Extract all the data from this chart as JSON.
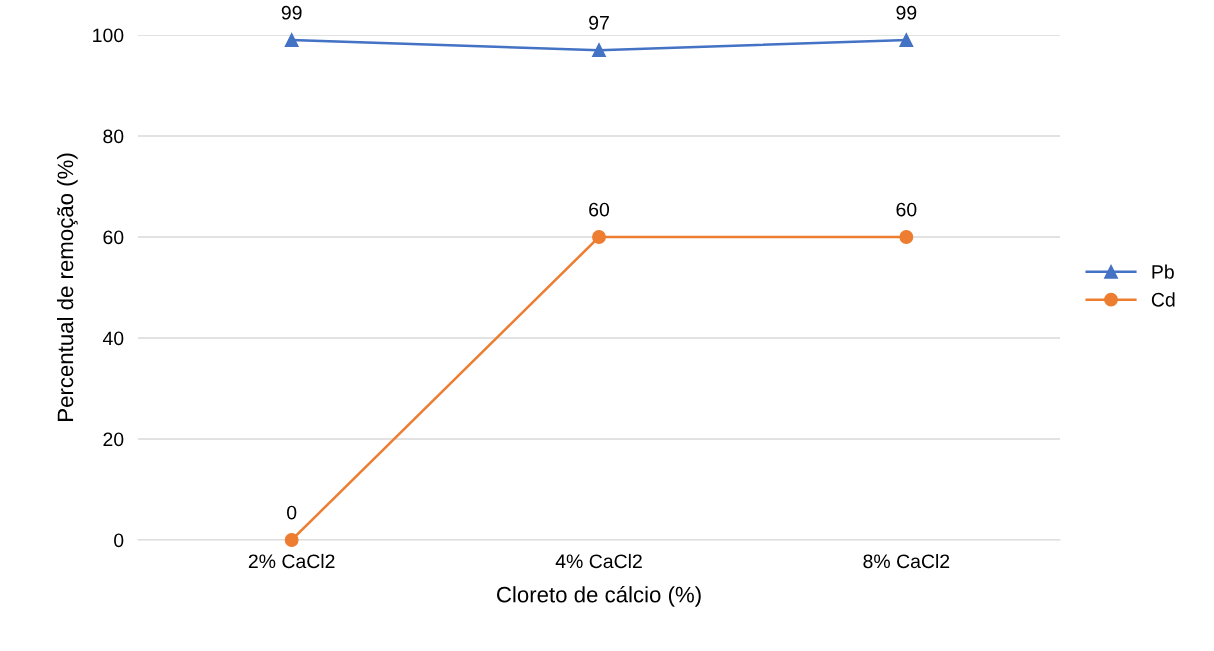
{
  "chart_data": {
    "type": "line",
    "xlabel": "Cloreto de cálcio (%)",
    "ylabel": "Percentual de remoção (%)",
    "categories": [
      "2% CaCl2",
      "4% CaCl2",
      "8% CaCl2"
    ],
    "series": [
      {
        "name": "Pb",
        "color": "#4472c4",
        "values": [
          99,
          97,
          99
        ],
        "marker": "triangle"
      },
      {
        "name": "Cd",
        "color": "#ed7d31",
        "values": [
          0,
          60,
          60
        ],
        "marker": "circle"
      }
    ],
    "ylim": [
      0,
      100
    ],
    "yticks": [
      0,
      20,
      40,
      60,
      80,
      100
    ],
    "grid": "y",
    "legend": "right",
    "data_labels": true
  }
}
